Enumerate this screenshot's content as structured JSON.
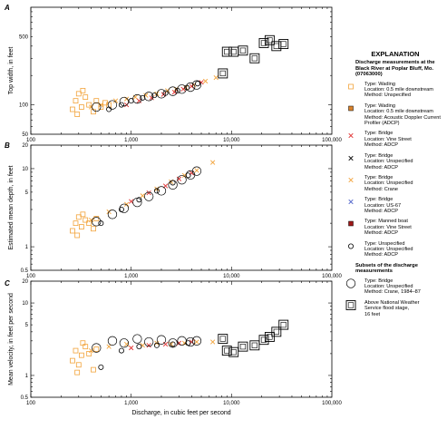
{
  "x_axis_label": "Discharge, in cubic feet per second",
  "x_ticks": [
    "100",
    "1,000",
    "10,000",
    "100,000"
  ],
  "legend": {
    "title": "EXPLANATION",
    "subtitle": "Discharge measurements at the Black River at Poplar Bluff, Mo. (07063000)",
    "items": [
      {
        "marker": "open-square",
        "color": "#f2a33a",
        "lines": [
          "Type: Wading",
          "Location: 0.5 mile downstream",
          "Method: Unspecified"
        ]
      },
      {
        "marker": "filled-square",
        "color": "#d9822b",
        "lines": [
          "Type: Wading",
          "Location: 0.5 mile downstream",
          "Method: Acoustic Doppler Current",
          "Profiler (ADCP)"
        ]
      },
      {
        "marker": "x",
        "color": "#e03030",
        "lines": [
          "Type: Bridge",
          "Location: Vine Street",
          "Method: ADCP"
        ]
      },
      {
        "marker": "x",
        "color": "#000000",
        "lines": [
          "Type: Bridge",
          "Location: Unspecified",
          "Method: ADCP"
        ]
      },
      {
        "marker": "x",
        "color": "#f2a33a",
        "lines": [
          "Type: Bridge",
          "Location: Unspecified",
          "Method: Crane"
        ]
      },
      {
        "marker": "x",
        "color": "#4a5fc8",
        "lines": [
          "Type: Bridge",
          "Location: US-67",
          "Method: ADCP"
        ]
      },
      {
        "marker": "filled-square",
        "color": "#a01818",
        "lines": [
          "Type: Manned boat",
          "Location: Vine Street",
          "Method: ADCP"
        ]
      },
      {
        "marker": "open-circle",
        "color": "#000000",
        "lines": [
          "Type: Unspecified",
          "Location: Unspecified",
          "Method: ADCP"
        ]
      }
    ],
    "subsets_title": "Subsets of the discharge measurements",
    "subsets": [
      {
        "marker": "big-circle",
        "lines": [
          "Type: Bridge",
          "Location: Unspecified",
          "Method: Crane, 1984–87"
        ]
      },
      {
        "marker": "big-square",
        "lines": [
          "Above National Weather",
          "Service flood stage,",
          "16 feet"
        ]
      }
    ]
  },
  "chart_data": [
    {
      "panel": "A",
      "type": "scatter",
      "ylabel": "Top width, in feet",
      "yscale": "log",
      "xscale": "log",
      "xlim": [
        100,
        100000
      ],
      "ylim": [
        50,
        1000
      ],
      "y_ticks": [
        {
          "value": 50,
          "label": "50"
        },
        {
          "value": 100,
          "label": "100"
        },
        {
          "value": 500,
          "label": "500"
        }
      ],
      "series": [
        {
          "marker": "open-square",
          "color": "#f2a33a",
          "points": [
            [
              260,
              90
            ],
            [
              280,
              110
            ],
            [
              300,
              130
            ],
            [
              320,
              95
            ],
            [
              350,
              120
            ],
            [
              380,
              100
            ],
            [
              420,
              85
            ],
            [
              450,
              110
            ],
            [
              500,
              95
            ],
            [
              550,
              105
            ],
            [
              290,
              80
            ],
            [
              330,
              140
            ],
            [
              600,
              100
            ]
          ]
        },
        {
          "marker": "x",
          "color": "#f2a33a",
          "points": [
            [
              400,
              95
            ],
            [
              500,
              100
            ],
            [
              700,
              110
            ],
            [
              900,
              115
            ],
            [
              1100,
              120
            ],
            [
              1400,
              125
            ],
            [
              1800,
              130
            ],
            [
              2300,
              140
            ],
            [
              2800,
              145
            ],
            [
              3500,
              150
            ],
            [
              4200,
              160
            ],
            [
              5500,
              175
            ],
            [
              7000,
              190
            ]
          ]
        },
        {
          "marker": "x",
          "color": "#e03030",
          "points": [
            [
              900,
              100
            ],
            [
              1200,
              110
            ],
            [
              1600,
              118
            ],
            [
              2100,
              128
            ],
            [
              2700,
              135
            ],
            [
              3300,
              145
            ],
            [
              4000,
              155
            ],
            [
              5000,
              170
            ]
          ]
        },
        {
          "marker": "open-circle",
          "color": "#000000",
          "points": [
            [
              600,
              90
            ],
            [
              800,
              100
            ],
            [
              1000,
              110
            ],
            [
              1300,
              118
            ],
            [
              1700,
              125
            ],
            [
              2200,
              132
            ],
            [
              2900,
              140
            ],
            [
              3600,
              150
            ],
            [
              4600,
              165
            ]
          ]
        },
        {
          "marker": "big-circle",
          "color": "#000000",
          "points": [
            [
              450,
              95
            ],
            [
              650,
              100
            ],
            [
              850,
              108
            ],
            [
              1150,
              115
            ],
            [
              1500,
              122
            ],
            [
              2000,
              130
            ],
            [
              2600,
              138
            ],
            [
              3200,
              145
            ],
            [
              3900,
              152
            ],
            [
              4500,
              160
            ]
          ]
        },
        {
          "marker": "big-square",
          "color": "#000000",
          "points": [
            [
              8200,
              210
            ],
            [
              9000,
              350
            ],
            [
              10500,
              350
            ],
            [
              13000,
              360
            ],
            [
              17000,
              300
            ],
            [
              21000,
              430
            ],
            [
              24000,
              460
            ],
            [
              28000,
              400
            ],
            [
              33000,
              420
            ]
          ]
        }
      ]
    },
    {
      "panel": "B",
      "type": "scatter",
      "ylabel": "Estimated mean depth, in feet",
      "yscale": "log",
      "xscale": "log",
      "xlim": [
        100,
        100000
      ],
      "ylim": [
        0.5,
        20
      ],
      "y_ticks": [
        {
          "value": 0.5,
          "label": "0.5"
        },
        {
          "value": 1,
          "label": "1"
        },
        {
          "value": 5,
          "label": "5"
        },
        {
          "value": 10,
          "label": "10"
        },
        {
          "value": 20,
          "label": "20"
        }
      ],
      "series": [
        {
          "marker": "open-square",
          "color": "#f2a33a",
          "points": [
            [
              260,
              1.6
            ],
            [
              280,
              2.0
            ],
            [
              300,
              2.4
            ],
            [
              320,
              1.8
            ],
            [
              350,
              2.2
            ],
            [
              380,
              2.0
            ],
            [
              420,
              1.7
            ],
            [
              450,
              2.3
            ],
            [
              290,
              1.4
            ],
            [
              330,
              2.6
            ]
          ]
        },
        {
          "marker": "x",
          "color": "#f2a33a",
          "points": [
            [
              400,
              2.2
            ],
            [
              600,
              2.8
            ],
            [
              900,
              3.5
            ],
            [
              1300,
              4.5
            ],
            [
              1800,
              5.5
            ],
            [
              2500,
              6.8
            ],
            [
              3400,
              8.2
            ],
            [
              4500,
              9.5
            ],
            [
              6500,
              12
            ]
          ]
        },
        {
          "marker": "x",
          "color": "#e03030",
          "points": [
            [
              1000,
              3.8
            ],
            [
              1500,
              4.9
            ],
            [
              2200,
              6.0
            ],
            [
              3000,
              7.4
            ],
            [
              4000,
              8.8
            ]
          ]
        },
        {
          "marker": "open-circle",
          "color": "#000000",
          "points": [
            [
              500,
              2.0
            ],
            [
              800,
              3.0
            ],
            [
              1200,
              4.0
            ],
            [
              1800,
              5.2
            ],
            [
              2600,
              6.6
            ],
            [
              3700,
              8.2
            ]
          ]
        },
        {
          "marker": "big-circle",
          "color": "#000000",
          "points": [
            [
              450,
              2.1
            ],
            [
              650,
              2.6
            ],
            [
              850,
              3.1
            ],
            [
              1150,
              3.7
            ],
            [
              1500,
              4.4
            ],
            [
              2000,
              5.2
            ],
            [
              2600,
              6.2
            ],
            [
              3200,
              7.2
            ],
            [
              3900,
              8.3
            ],
            [
              4500,
              9.3
            ]
          ]
        }
      ]
    },
    {
      "panel": "C",
      "type": "scatter",
      "ylabel": "Mean velocity, in feet per second",
      "yscale": "log",
      "xscale": "log",
      "xlim": [
        100,
        100000
      ],
      "ylim": [
        0.5,
        20
      ],
      "y_ticks": [
        {
          "value": 0.5,
          "label": "0.5"
        },
        {
          "value": 1,
          "label": "1"
        },
        {
          "value": 5,
          "label": "5"
        },
        {
          "value": 10,
          "label": "10"
        },
        {
          "value": 20,
          "label": "20"
        }
      ],
      "series": [
        {
          "marker": "open-square",
          "color": "#f2a33a",
          "points": [
            [
              260,
              1.6
            ],
            [
              280,
              2.2
            ],
            [
              300,
              1.4
            ],
            [
              320,
              1.9
            ],
            [
              350,
              2.5
            ],
            [
              380,
              2.0
            ],
            [
              420,
              1.2
            ],
            [
              450,
              2.3
            ],
            [
              290,
              1.1
            ],
            [
              330,
              2.8
            ]
          ]
        },
        {
          "marker": "x",
          "color": "#f2a33a",
          "points": [
            [
              400,
              2.2
            ],
            [
              600,
              2.5
            ],
            [
              900,
              2.7
            ],
            [
              1300,
              2.6
            ],
            [
              1800,
              2.8
            ],
            [
              2500,
              2.7
            ],
            [
              3400,
              2.8
            ],
            [
              4500,
              2.9
            ],
            [
              6500,
              2.9
            ]
          ]
        },
        {
          "marker": "x",
          "color": "#e03030",
          "points": [
            [
              1000,
              2.4
            ],
            [
              1500,
              2.6
            ],
            [
              2200,
              2.7
            ],
            [
              3000,
              2.8
            ],
            [
              4000,
              2.9
            ]
          ]
        },
        {
          "marker": "open-circle",
          "color": "#000000",
          "points": [
            [
              500,
              1.3
            ],
            [
              800,
              2.2
            ],
            [
              1200,
              2.5
            ],
            [
              1800,
              2.6
            ],
            [
              2600,
              2.7
            ],
            [
              3700,
              2.8
            ]
          ]
        },
        {
          "marker": "big-circle",
          "color": "#000000",
          "points": [
            [
              450,
              2.4
            ],
            [
              650,
              3.0
            ],
            [
              850,
              2.8
            ],
            [
              1150,
              3.2
            ],
            [
              1500,
              2.9
            ],
            [
              2000,
              3.1
            ],
            [
              2600,
              2.8
            ],
            [
              3200,
              3.0
            ],
            [
              3900,
              2.9
            ],
            [
              4500,
              3.0
            ]
          ]
        },
        {
          "marker": "big-square",
          "color": "#000000",
          "points": [
            [
              8200,
              3.2
            ],
            [
              9000,
              2.2
            ],
            [
              10500,
              2.1
            ],
            [
              13000,
              2.5
            ],
            [
              17000,
              2.6
            ],
            [
              21000,
              3.1
            ],
            [
              24000,
              3.4
            ],
            [
              28000,
              4.0
            ],
            [
              33000,
              5.0
            ]
          ]
        }
      ]
    }
  ]
}
